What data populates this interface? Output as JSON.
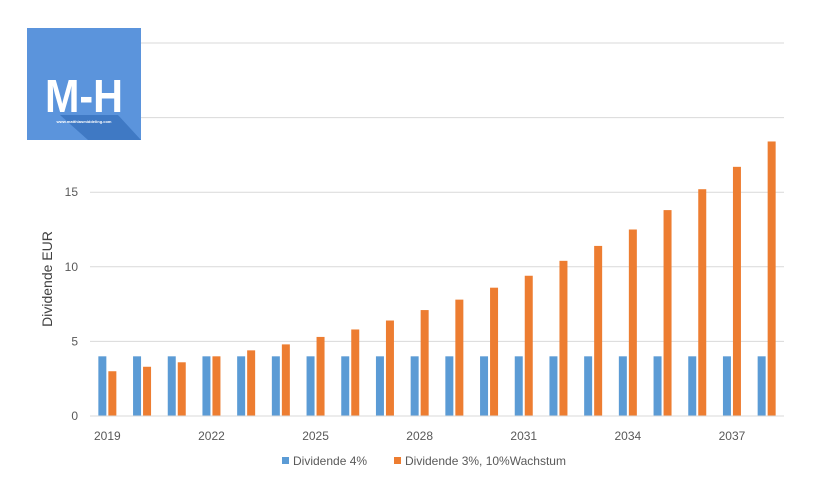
{
  "logo": {
    "mark": "M-H",
    "url": "www.matthiasmiddeling.com",
    "colors": {
      "background": "#5b94dc",
      "shadow": "#3f79c4",
      "text": "#ffffff"
    }
  },
  "chart_data": {
    "type": "bar",
    "title": "",
    "xlabel": "",
    "ylabel": "Dividende EUR",
    "ylim": [
      0,
      25
    ],
    "yticks": [
      0,
      5,
      10,
      15
    ],
    "grid": true,
    "legend_position": "bottom",
    "categories": [
      "2019",
      "2020",
      "2021",
      "2022",
      "2023",
      "2024",
      "2025",
      "2026",
      "2027",
      "2028",
      "2029",
      "2030",
      "2031",
      "2032",
      "2033",
      "2034",
      "2035",
      "2036",
      "2037",
      "2038"
    ],
    "x_tick_labels": [
      "2019",
      "2022",
      "2025",
      "2028",
      "2031",
      "2034",
      "2037"
    ],
    "series": [
      {
        "name": "Dividende 4%",
        "color": "#5b9bd5",
        "values": [
          4,
          4,
          4,
          4,
          4,
          4,
          4,
          4,
          4,
          4,
          4,
          4,
          4,
          4,
          4,
          4,
          4,
          4,
          4,
          4
        ]
      },
      {
        "name": "Dividende 3%, 10%Wachstum",
        "color": "#ed7d31",
        "values": [
          3.0,
          3.3,
          3.6,
          4.0,
          4.4,
          4.8,
          5.3,
          5.8,
          6.4,
          7.1,
          7.8,
          8.6,
          9.4,
          10.4,
          11.4,
          12.5,
          13.8,
          15.2,
          16.7,
          18.4
        ]
      }
    ]
  }
}
